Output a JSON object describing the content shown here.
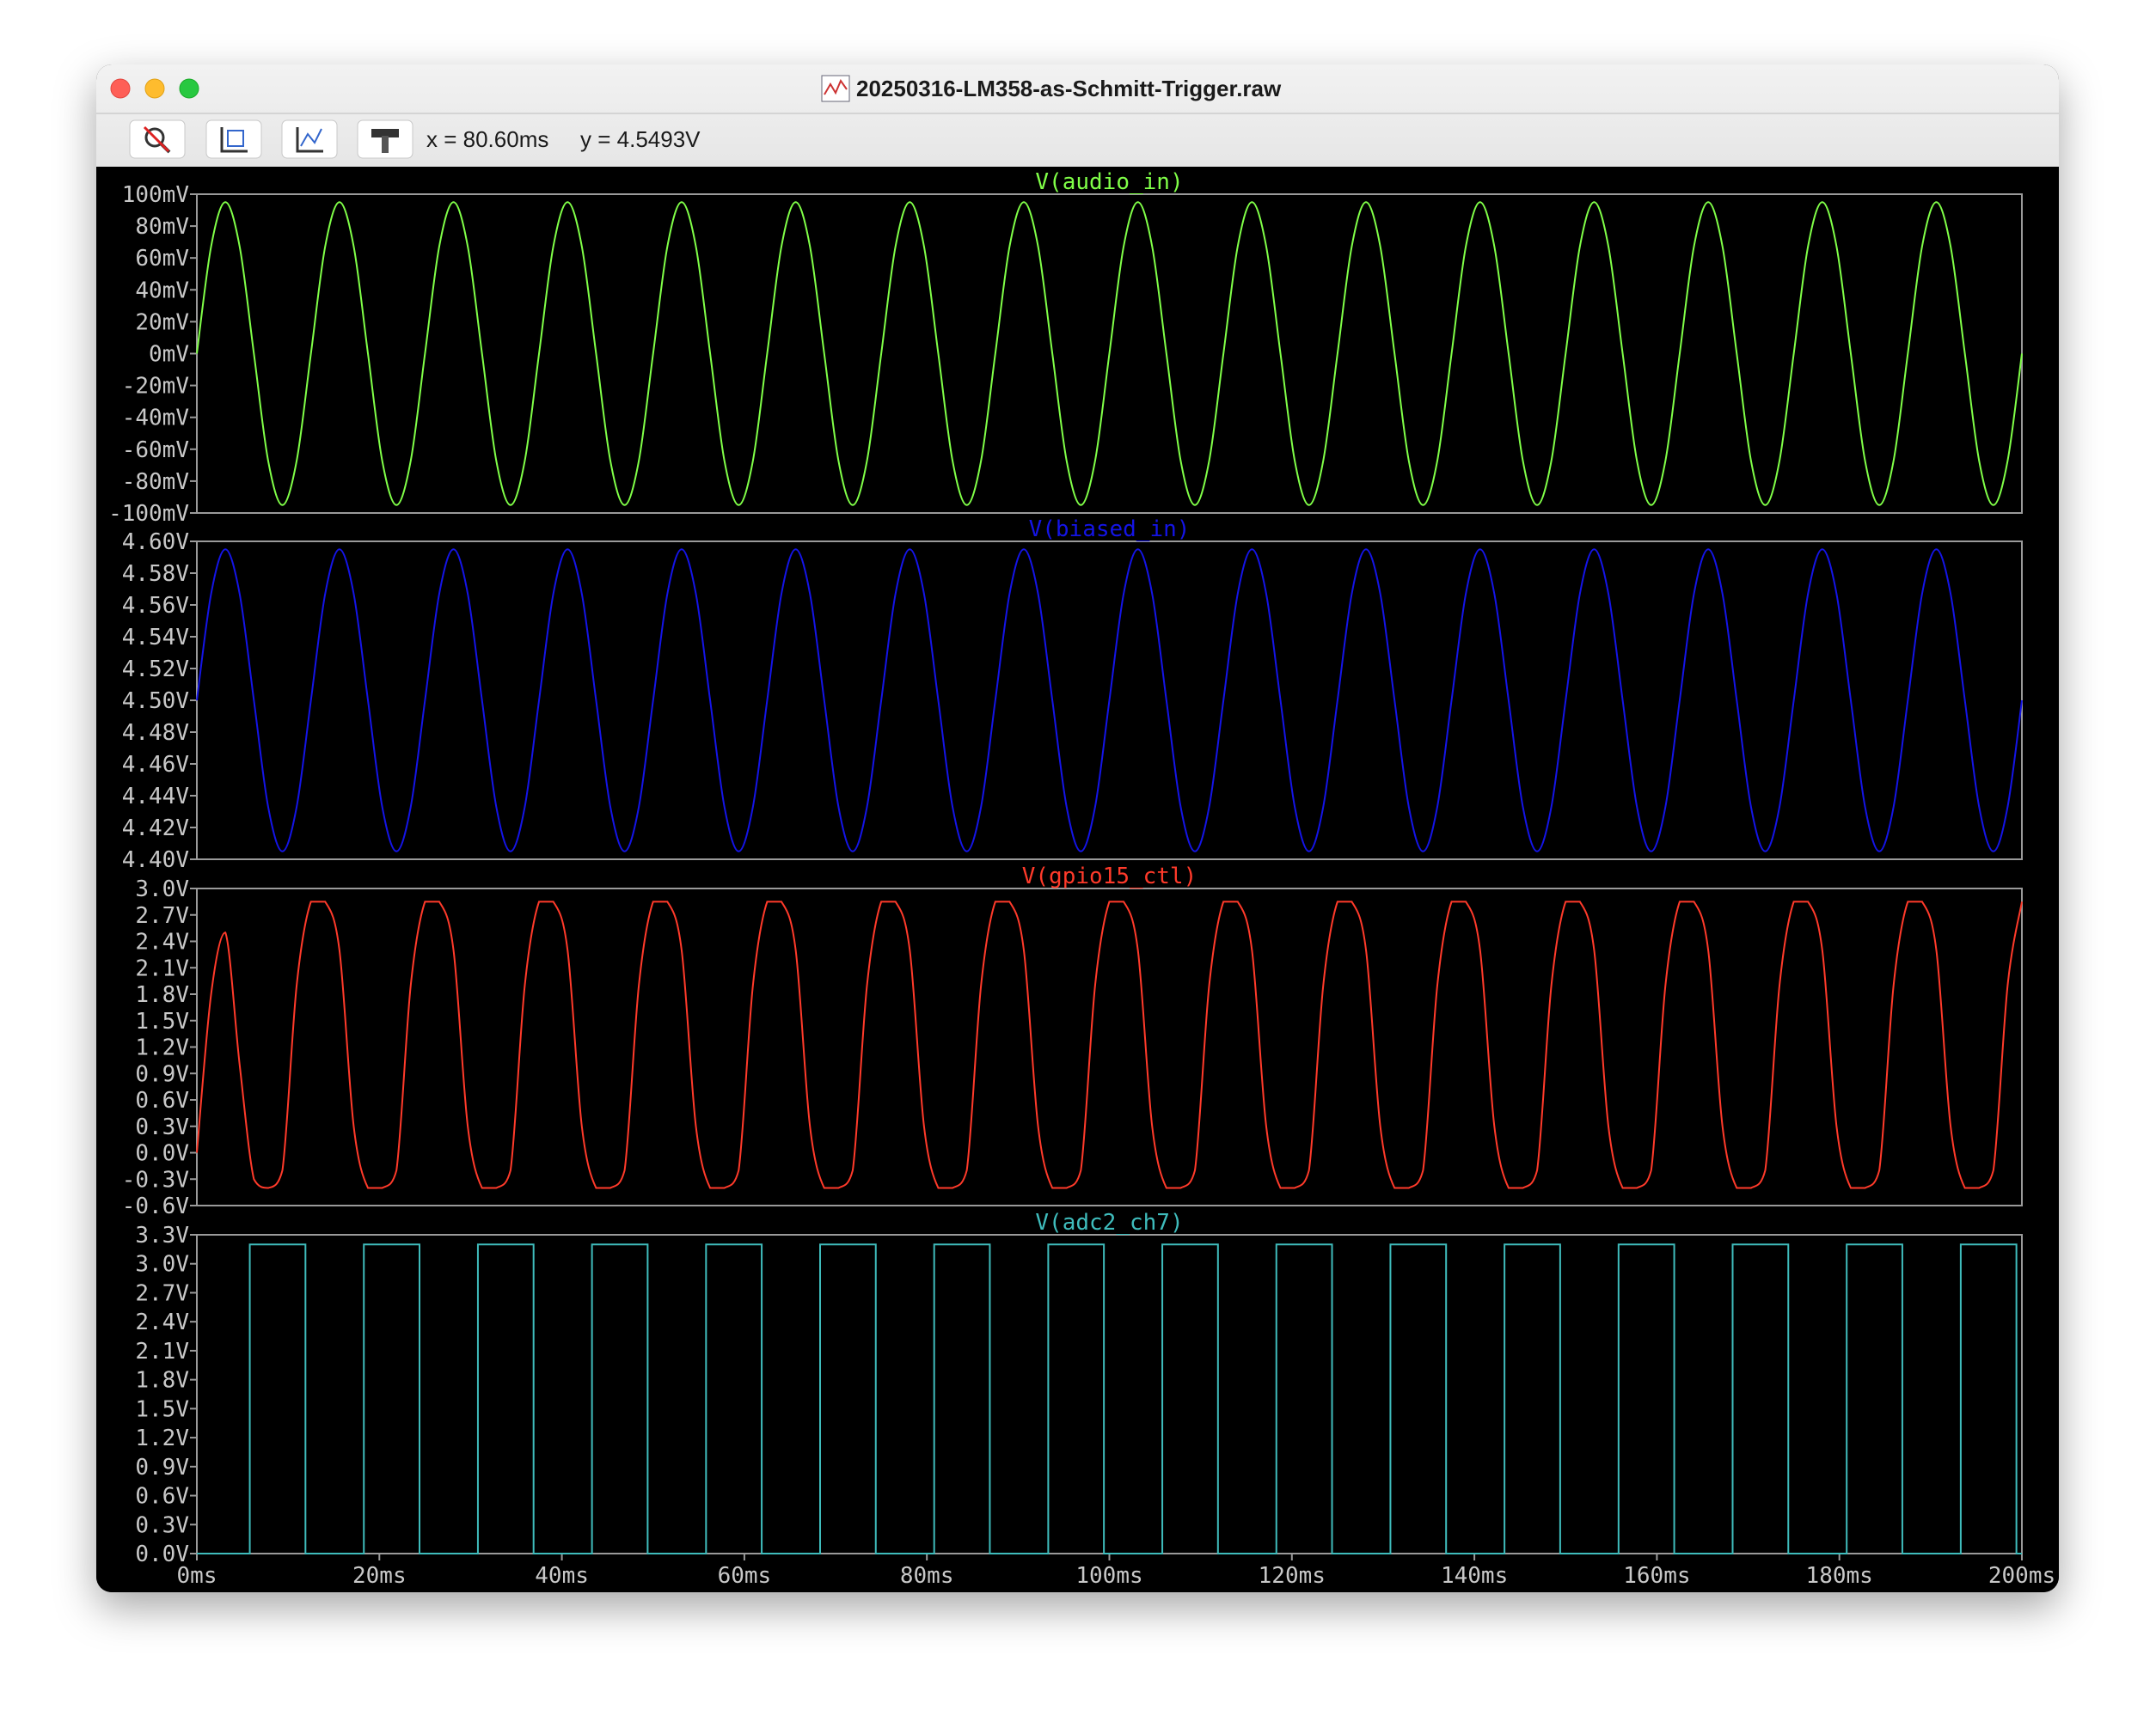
{
  "window": {
    "title": "20250316-LM358-as-Schmitt-Trigger.raw",
    "readout_x": "x = 80.60ms",
    "readout_y": "y = 4.5493V"
  },
  "chart_data": [
    {
      "type": "line",
      "title": "V(audio_in)",
      "color": "#80ff48",
      "x": [
        0,
        1.5625,
        3.125,
        4.6875,
        6.25,
        7.8125,
        9.375,
        10.9375,
        12.5,
        14.0625,
        15.625,
        17.1875,
        18.75,
        20.3125,
        21.875,
        23.4375,
        25,
        26.5625,
        28.125,
        29.6875,
        31.25,
        32.8125,
        34.375,
        35.9375,
        37.5,
        39.0625,
        40.625,
        42.1875,
        43.75,
        45.3125,
        46.875,
        48.4375,
        50,
        51.5625,
        53.125,
        54.6875,
        56.25,
        57.8125,
        59.375,
        60.9375,
        62.5,
        64.0625,
        65.625,
        67.1875,
        68.75,
        70.3125,
        71.875,
        73.4375,
        75,
        76.5625,
        78.125,
        79.6875,
        81.25,
        82.8125,
        84.375,
        85.9375,
        87.5,
        89.0625,
        90.625,
        92.1875,
        93.75,
        95.3125,
        96.875,
        98.4375,
        100,
        101.5625,
        103.125,
        104.6875,
        106.25,
        107.8125,
        109.375,
        110.9375,
        112.5,
        114.0625,
        115.625,
        117.1875,
        118.75,
        120.3125,
        121.875,
        123.4375,
        125,
        126.5625,
        128.125,
        129.6875,
        131.25,
        132.8125,
        134.375,
        135.9375,
        137.5,
        139.0625,
        140.625,
        142.1875,
        143.75,
        145.3125,
        146.875,
        148.4375,
        150,
        151.5625,
        153.125,
        154.6875,
        156.25,
        157.8125,
        159.375,
        160.9375,
        162.5,
        164.0625,
        165.625,
        167.1875,
        168.75,
        170.3125,
        171.875,
        173.4375,
        175,
        176.5625,
        178.125,
        179.6875,
        181.25,
        182.8125,
        184.375,
        185.9375,
        187.5,
        189.0625,
        190.625,
        192.1875,
        193.75,
        195.3125,
        196.875,
        198.4375,
        200
      ],
      "values": [
        0,
        67.2,
        95,
        67.2,
        0,
        -67.2,
        -95,
        -67.2,
        0,
        67.2,
        95,
        67.2,
        0,
        -67.2,
        -95,
        -67.2,
        0,
        67.2,
        95,
        67.2,
        0,
        -67.2,
        -95,
        -67.2,
        0,
        67.2,
        95,
        67.2,
        0,
        -67.2,
        -95,
        -67.2,
        0,
        67.2,
        95,
        67.2,
        0,
        -67.2,
        -95,
        -67.2,
        0,
        67.2,
        95,
        67.2,
        0,
        -67.2,
        -95,
        -67.2,
        0,
        67.2,
        95,
        67.2,
        0,
        -67.2,
        -95,
        -67.2,
        0,
        67.2,
        95,
        67.2,
        0,
        -67.2,
        -95,
        -67.2,
        0,
        67.2,
        95,
        67.2,
        0,
        -67.2,
        -95,
        -67.2,
        0,
        67.2,
        95,
        67.2,
        0,
        -67.2,
        -95,
        -67.2,
        0,
        67.2,
        95,
        67.2,
        0,
        -67.2,
        -95,
        -67.2,
        0,
        67.2,
        95,
        67.2,
        0,
        -67.2,
        -95,
        -67.2,
        0,
        67.2,
        95,
        67.2,
        0,
        -67.2,
        -95,
        -67.2,
        0,
        67.2,
        95,
        67.2,
        0,
        -67.2,
        -95,
        -67.2,
        0,
        67.2,
        95,
        67.2,
        0,
        -67.2,
        -95,
        -67.2,
        0,
        67.2,
        95,
        67.2,
        0,
        -67.2,
        -95,
        -67.2,
        0
      ],
      "xlim": [
        0,
        200
      ],
      "ylim": [
        -100,
        100
      ],
      "grid": false,
      "yticks": [
        {
          "value": 100,
          "label": "100mV"
        },
        {
          "value": 80,
          "label": "80mV"
        },
        {
          "value": 60,
          "label": "60mV"
        },
        {
          "value": 40,
          "label": "40mV"
        },
        {
          "value": 20,
          "label": "20mV"
        },
        {
          "value": 0,
          "label": "0mV"
        },
        {
          "value": -20,
          "label": "-20mV"
        },
        {
          "value": -40,
          "label": "-40mV"
        },
        {
          "value": -60,
          "label": "-60mV"
        },
        {
          "value": -80,
          "label": "-80mV"
        },
        {
          "value": -100,
          "label": "-100mV"
        }
      ]
    },
    {
      "type": "line",
      "title": "V(biased_in)",
      "color": "#1414e6",
      "x": [
        0,
        1.5625,
        3.125,
        4.6875,
        6.25,
        7.8125,
        9.375,
        10.9375,
        12.5,
        14.0625,
        15.625,
        17.1875,
        18.75,
        20.3125,
        21.875,
        23.4375,
        25,
        26.5625,
        28.125,
        29.6875,
        31.25,
        32.8125,
        34.375,
        35.9375,
        37.5,
        39.0625,
        40.625,
        42.1875,
        43.75,
        45.3125,
        46.875,
        48.4375,
        50,
        51.5625,
        53.125,
        54.6875,
        56.25,
        57.8125,
        59.375,
        60.9375,
        62.5,
        64.0625,
        65.625,
        67.1875,
        68.75,
        70.3125,
        71.875,
        73.4375,
        75,
        76.5625,
        78.125,
        79.6875,
        81.25,
        82.8125,
        84.375,
        85.9375,
        87.5,
        89.0625,
        90.625,
        92.1875,
        93.75,
        95.3125,
        96.875,
        98.4375,
        100,
        101.5625,
        103.125,
        104.6875,
        106.25,
        107.8125,
        109.375,
        110.9375,
        112.5,
        114.0625,
        115.625,
        117.1875,
        118.75,
        120.3125,
        121.875,
        123.4375,
        125,
        126.5625,
        128.125,
        129.6875,
        131.25,
        132.8125,
        134.375,
        135.9375,
        137.5,
        139.0625,
        140.625,
        142.1875,
        143.75,
        145.3125,
        146.875,
        148.4375,
        150,
        151.5625,
        153.125,
        154.6875,
        156.25,
        157.8125,
        159.375,
        160.9375,
        162.5,
        164.0625,
        165.625,
        167.1875,
        168.75,
        170.3125,
        171.875,
        173.4375,
        175,
        176.5625,
        178.125,
        179.6875,
        181.25,
        182.8125,
        184.375,
        185.9375,
        187.5,
        189.0625,
        190.625,
        192.1875,
        193.75,
        195.3125,
        196.875,
        198.4375,
        200
      ],
      "values": [
        4.5,
        4.567,
        4.595,
        4.567,
        4.5,
        4.433,
        4.405,
        4.433,
        4.5,
        4.567,
        4.595,
        4.567,
        4.5,
        4.433,
        4.405,
        4.433,
        4.5,
        4.567,
        4.595,
        4.567,
        4.5,
        4.433,
        4.405,
        4.433,
        4.5,
        4.567,
        4.595,
        4.567,
        4.5,
        4.433,
        4.405,
        4.433,
        4.5,
        4.567,
        4.595,
        4.567,
        4.5,
        4.433,
        4.405,
        4.433,
        4.5,
        4.567,
        4.595,
        4.567,
        4.5,
        4.433,
        4.405,
        4.433,
        4.5,
        4.567,
        4.595,
        4.567,
        4.5,
        4.433,
        4.405,
        4.433,
        4.5,
        4.567,
        4.595,
        4.567,
        4.5,
        4.433,
        4.405,
        4.433,
        4.5,
        4.567,
        4.595,
        4.567,
        4.5,
        4.433,
        4.405,
        4.433,
        4.5,
        4.567,
        4.595,
        4.567,
        4.5,
        4.433,
        4.405,
        4.433,
        4.5,
        4.567,
        4.595,
        4.567,
        4.5,
        4.433,
        4.405,
        4.433,
        4.5,
        4.567,
        4.595,
        4.567,
        4.5,
        4.433,
        4.405,
        4.433,
        4.5,
        4.567,
        4.595,
        4.567,
        4.5,
        4.433,
        4.405,
        4.433,
        4.5,
        4.567,
        4.595,
        4.567,
        4.5,
        4.433,
        4.405,
        4.433,
        4.5,
        4.567,
        4.595,
        4.567,
        4.5,
        4.433,
        4.405,
        4.433,
        4.5,
        4.567,
        4.595,
        4.567,
        4.5,
        4.433,
        4.405,
        4.433,
        4.5
      ],
      "xlim": [
        0,
        200
      ],
      "ylim": [
        4.4,
        4.6
      ],
      "grid": false,
      "yticks": [
        {
          "value": 4.6,
          "label": "4.60V"
        },
        {
          "value": 4.58,
          "label": "4.58V"
        },
        {
          "value": 4.56,
          "label": "4.56V"
        },
        {
          "value": 4.54,
          "label": "4.54V"
        },
        {
          "value": 4.52,
          "label": "4.52V"
        },
        {
          "value": 4.5,
          "label": "4.50V"
        },
        {
          "value": 4.48,
          "label": "4.48V"
        },
        {
          "value": 4.46,
          "label": "4.46V"
        },
        {
          "value": 4.44,
          "label": "4.44V"
        },
        {
          "value": 4.42,
          "label": "4.42V"
        },
        {
          "value": 4.4,
          "label": "4.40V"
        }
      ]
    },
    {
      "type": "line",
      "title": "V(gpio15_ctl)",
      "color": "#ff3a2a",
      "x": [
        0,
        1.5625,
        3.125,
        4.6875,
        6.25,
        7.8125,
        9.375,
        10.9375,
        12.5,
        14.0625,
        15.625,
        17.1875,
        18.75,
        20.3125,
        21.875,
        23.4375,
        25,
        26.5625,
        28.125,
        29.6875,
        31.25,
        32.8125,
        34.375,
        35.9375,
        37.5,
        39.0625,
        40.625,
        42.1875,
        43.75,
        45.3125,
        46.875,
        48.4375,
        50,
        51.5625,
        53.125,
        54.6875,
        56.25,
        57.8125,
        59.375,
        60.9375,
        62.5,
        64.0625,
        65.625,
        67.1875,
        68.75,
        70.3125,
        71.875,
        73.4375,
        75,
        76.5625,
        78.125,
        79.6875,
        81.25,
        82.8125,
        84.375,
        85.9375,
        87.5,
        89.0625,
        90.625,
        92.1875,
        93.75,
        95.3125,
        96.875,
        98.4375,
        100,
        101.5625,
        103.125,
        104.6875,
        106.25,
        107.8125,
        109.375,
        110.9375,
        112.5,
        114.0625,
        115.625,
        117.1875,
        118.75,
        120.3125,
        121.875,
        123.4375,
        125,
        126.5625,
        128.125,
        129.6875,
        131.25,
        132.8125,
        134.375,
        135.9375,
        137.5,
        139.0625,
        140.625,
        142.1875,
        143.75,
        145.3125,
        146.875,
        148.4375,
        150,
        151.5625,
        153.125,
        154.6875,
        156.25,
        157.8125,
        159.375,
        160.9375,
        162.5,
        164.0625,
        165.625,
        167.1875,
        168.75,
        170.3125,
        171.875,
        173.4375,
        175,
        176.5625,
        178.125,
        179.6875,
        181.25,
        182.8125,
        184.375,
        185.9375,
        187.5,
        189.0625,
        190.625,
        192.1875,
        193.75,
        195.3125,
        196.875,
        198.4375,
        200
      ],
      "values": [
        0,
        1.8,
        2.5,
        1.0,
        -0.3,
        -0.4,
        -0.2,
        1.9,
        2.85,
        2.85,
        2.3,
        0.3,
        -0.4,
        -0.4,
        -0.2,
        1.9,
        2.85,
        2.85,
        2.3,
        0.3,
        -0.4,
        -0.4,
        -0.2,
        1.9,
        2.85,
        2.85,
        2.3,
        0.3,
        -0.4,
        -0.4,
        -0.2,
        1.9,
        2.85,
        2.85,
        2.3,
        0.3,
        -0.4,
        -0.4,
        -0.2,
        1.9,
        2.85,
        2.85,
        2.3,
        0.3,
        -0.4,
        -0.4,
        -0.2,
        1.9,
        2.85,
        2.85,
        2.3,
        0.3,
        -0.4,
        -0.4,
        -0.2,
        1.9,
        2.85,
        2.85,
        2.3,
        0.3,
        -0.4,
        -0.4,
        -0.2,
        1.9,
        2.85,
        2.85,
        2.3,
        0.3,
        -0.4,
        -0.4,
        -0.2,
        1.9,
        2.85,
        2.85,
        2.3,
        0.3,
        -0.4,
        -0.4,
        -0.2,
        1.9,
        2.85,
        2.85,
        2.3,
        0.3,
        -0.4,
        -0.4,
        -0.2,
        1.9,
        2.85,
        2.85,
        2.3,
        0.3,
        -0.4,
        -0.4,
        -0.2,
        1.9,
        2.85,
        2.85,
        2.3,
        0.3,
        -0.4,
        -0.4,
        -0.2,
        1.9,
        2.85,
        2.85,
        2.3,
        0.3,
        -0.4,
        -0.4,
        -0.2,
        1.9,
        2.85,
        2.85,
        2.3,
        0.3,
        -0.4,
        -0.4,
        -0.2,
        1.9,
        2.85,
        2.85,
        2.3,
        0.3,
        -0.4,
        -0.4,
        -0.2,
        1.9,
        2.85
      ],
      "xlim": [
        0,
        200
      ],
      "ylim": [
        -0.6,
        3.0
      ],
      "grid": false,
      "yticks": [
        {
          "value": 3.0,
          "label": "3.0V"
        },
        {
          "value": 2.7,
          "label": "2.7V"
        },
        {
          "value": 2.4,
          "label": "2.4V"
        },
        {
          "value": 2.1,
          "label": "2.1V"
        },
        {
          "value": 1.8,
          "label": "1.8V"
        },
        {
          "value": 1.5,
          "label": "1.5V"
        },
        {
          "value": 1.2,
          "label": "1.2V"
        },
        {
          "value": 0.9,
          "label": "0.9V"
        },
        {
          "value": 0.6,
          "label": "0.6V"
        },
        {
          "value": 0.3,
          "label": "0.3V"
        },
        {
          "value": 0,
          "label": "0.0V"
        },
        {
          "value": -0.3,
          "label": "-0.3V"
        },
        {
          "value": -0.6,
          "label": "-0.6V"
        }
      ]
    },
    {
      "type": "line",
      "title": "V(adc2_ch7)",
      "color": "#3fbcbc",
      "x": [
        0,
        5.8,
        5.8,
        11.9,
        11.9,
        18.3,
        18.3,
        24.4,
        24.4,
        30.8,
        30.8,
        36.9,
        36.9,
        43.3,
        43.3,
        49.4,
        49.4,
        55.8,
        55.8,
        61.9,
        61.9,
        68.3,
        68.3,
        74.4,
        74.4,
        80.8,
        80.8,
        86.9,
        86.9,
        93.3,
        93.3,
        99.4,
        99.4,
        105.8,
        105.8,
        111.9,
        111.9,
        118.3,
        118.3,
        124.4,
        124.4,
        130.8,
        130.8,
        136.9,
        136.9,
        143.3,
        143.3,
        149.4,
        149.4,
        155.8,
        155.8,
        161.9,
        161.9,
        168.3,
        168.3,
        174.4,
        174.4,
        180.8,
        180.8,
        186.9,
        186.9,
        193.3,
        193.3,
        199.4,
        199.4,
        200
      ],
      "values": [
        0,
        0,
        3.2,
        3.2,
        0,
        0,
        3.2,
        3.2,
        0,
        0,
        3.2,
        3.2,
        0,
        0,
        3.2,
        3.2,
        0,
        0,
        3.2,
        3.2,
        0,
        0,
        3.2,
        3.2,
        0,
        0,
        3.2,
        3.2,
        0,
        0,
        3.2,
        3.2,
        0,
        0,
        3.2,
        3.2,
        0,
        0,
        3.2,
        3.2,
        0,
        0,
        3.2,
        3.2,
        0,
        0,
        3.2,
        3.2,
        0,
        0,
        3.2,
        3.2,
        0,
        0,
        3.2,
        3.2,
        0,
        0,
        3.2,
        3.2,
        0,
        0,
        3.2,
        3.2,
        0,
        0
      ],
      "xlim": [
        0,
        200
      ],
      "ylim": [
        0,
        3.3
      ],
      "grid": false,
      "yticks": [
        {
          "value": 3.3,
          "label": "3.3V"
        },
        {
          "value": 3.0,
          "label": "3.0V"
        },
        {
          "value": 2.7,
          "label": "2.7V"
        },
        {
          "value": 2.4,
          "label": "2.4V"
        },
        {
          "value": 2.1,
          "label": "2.1V"
        },
        {
          "value": 1.8,
          "label": "1.8V"
        },
        {
          "value": 1.5,
          "label": "1.5V"
        },
        {
          "value": 1.2,
          "label": "1.2V"
        },
        {
          "value": 0.9,
          "label": "0.9V"
        },
        {
          "value": 0.6,
          "label": "0.6V"
        },
        {
          "value": 0.3,
          "label": "0.3V"
        },
        {
          "value": 0,
          "label": "0.0V"
        }
      ],
      "xticks": [
        {
          "value": 0,
          "label": "0ms"
        },
        {
          "value": 20,
          "label": "20ms"
        },
        {
          "value": 40,
          "label": "40ms"
        },
        {
          "value": 60,
          "label": "60ms"
        },
        {
          "value": 80,
          "label": "80ms"
        },
        {
          "value": 100,
          "label": "100ms"
        },
        {
          "value": 120,
          "label": "120ms"
        },
        {
          "value": 140,
          "label": "140ms"
        },
        {
          "value": 160,
          "label": "160ms"
        },
        {
          "value": 180,
          "label": "180ms"
        },
        {
          "value": 200,
          "label": "200ms"
        }
      ]
    }
  ]
}
